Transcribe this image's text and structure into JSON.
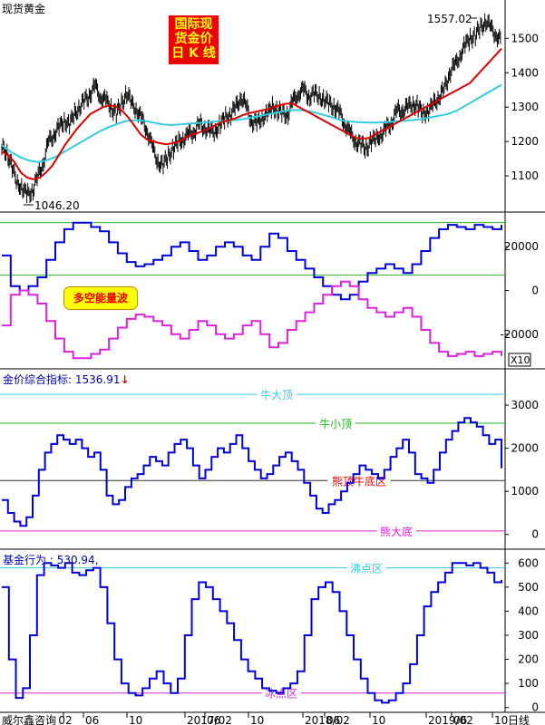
{
  "app": {
    "title": "现货黄金",
    "vendor": "威尔鑫咨询",
    "period_label": "日线",
    "badge_lines": [
      "国际现",
      "货金价",
      "日 K 线"
    ]
  },
  "colors": {
    "price": "#000000",
    "ma_fast": "#dd0000",
    "ma_slow": "#33ccdd",
    "bull": "#0000dd",
    "bear": "#dd22dd",
    "ref_green": "#22bb22",
    "ref_cyan": "#33ccdd",
    "ref_magenta": "#dd22dd",
    "ref_black": "#333333",
    "badge_bg": "#ee0000",
    "badge_text": "#ffff00",
    "label_red": "#ee0000"
  },
  "xaxis": {
    "labels": [
      "02",
      "06",
      "10",
      "2017/02",
      "06",
      "10",
      "2018/02",
      "06",
      "10",
      "2019/02",
      "06",
      "10"
    ]
  },
  "chart_data": [
    {
      "type": "line",
      "title": "现货黄金",
      "ylim": [
        1000,
        1580
      ],
      "yticks": [
        1100,
        1200,
        1300,
        1400,
        1500
      ],
      "annotations": {
        "high": "1557.02",
        "low": "1046.20"
      },
      "series": [
        {
          "name": "price",
          "values": [
            1180,
            1170,
            1120,
            1080,
            1060,
            1046,
            1060,
            1100,
            1140,
            1200,
            1220,
            1240,
            1260,
            1250,
            1280,
            1300,
            1320,
            1340,
            1360,
            1330,
            1320,
            1300,
            1280,
            1310,
            1340,
            1310,
            1290,
            1260,
            1230,
            1180,
            1140,
            1130,
            1160,
            1180,
            1200,
            1210,
            1220,
            1230,
            1250,
            1240,
            1230,
            1230,
            1250,
            1270,
            1280,
            1300,
            1330,
            1300,
            1260,
            1250,
            1270,
            1280,
            1300,
            1290,
            1280,
            1280,
            1320,
            1340,
            1350,
            1330,
            1340,
            1330,
            1320,
            1310,
            1300,
            1280,
            1250,
            1220,
            1200,
            1190,
            1180,
            1200,
            1210,
            1220,
            1240,
            1260,
            1290,
            1290,
            1300,
            1310,
            1300,
            1280,
            1290,
            1310,
            1330,
            1350,
            1400,
            1420,
            1450,
            1480,
            1500,
            1510,
            1530,
            1550,
            1530,
            1510,
            1490
          ]
        },
        {
          "name": "ma_fast",
          "values": [
            1170,
            1160,
            1140,
            1110,
            1095,
            1090,
            1095,
            1110,
            1130,
            1160,
            1190,
            1215,
            1240,
            1260,
            1280,
            1290,
            1300,
            1305,
            1302,
            1290,
            1270,
            1245,
            1220,
            1205,
            1200,
            1195,
            1192,
            1195,
            1200,
            1210,
            1220,
            1225,
            1232,
            1240,
            1250,
            1258,
            1262,
            1268,
            1276,
            1282,
            1286,
            1290,
            1294,
            1300,
            1306,
            1310,
            1310,
            1300,
            1290,
            1280,
            1270,
            1260,
            1250,
            1240,
            1230,
            1220,
            1210,
            1208,
            1210,
            1220,
            1230,
            1240,
            1250,
            1260,
            1270,
            1280,
            1290,
            1300,
            1310,
            1320,
            1330,
            1340,
            1350,
            1360,
            1370,
            1390,
            1410,
            1430,
            1450,
            1470
          ]
        },
        {
          "name": "ma_slow",
          "values": [
            1190,
            1170,
            1155,
            1145,
            1140,
            1145,
            1155,
            1170,
            1185,
            1200,
            1215,
            1230,
            1242,
            1252,
            1260,
            1262,
            1260,
            1255,
            1250,
            1248,
            1250,
            1252,
            1254,
            1256,
            1258,
            1260,
            1262,
            1265,
            1270,
            1275,
            1280,
            1285,
            1290,
            1292,
            1290,
            1285,
            1278,
            1270,
            1262,
            1258,
            1256,
            1255,
            1255,
            1256,
            1258,
            1260,
            1262,
            1265,
            1270,
            1275,
            1280,
            1290,
            1305,
            1320,
            1335,
            1350,
            1365
          ]
        },
        {
          "name": "bull",
          "values": [
            8,
            3,
            -5,
            -8,
            -4,
            5,
            15,
            22,
            26,
            30,
            28,
            28,
            24,
            20,
            17,
            16,
            17,
            17,
            18,
            19,
            18,
            16,
            15,
            20,
            21,
            22,
            20,
            18,
            17,
            22,
            24,
            20,
            16,
            13,
            10,
            7,
            4,
            1,
            -1,
            -3,
            -2,
            0,
            6,
            10,
            10,
            8,
            9,
            12,
            20,
            25,
            27,
            28,
            28,
            30,
            27,
            28
          ]
        },
        {
          "name": "bear",
          "values": [
            -8,
            -3,
            5,
            8,
            4,
            -5,
            -15,
            -22,
            -26,
            -30,
            -28,
            -28,
            -24,
            -20,
            -17,
            -16,
            -17,
            -17,
            -18,
            -19,
            -18,
            -16,
            -15,
            -20,
            -21,
            -22,
            -20,
            -18,
            -17,
            -22,
            -24,
            -20,
            -16,
            -13,
            -10,
            -7,
            -4,
            -1,
            1,
            3,
            2,
            0,
            -6,
            -10,
            -10,
            -8,
            -9,
            -12,
            -20,
            -25,
            -27,
            -28,
            -28,
            -30,
            -27,
            -28
          ]
        }
      ]
    },
    {
      "type": "line",
      "title": "多空能量波",
      "ylim": [
        -35000,
        35000
      ],
      "yticks": [
        20000,
        0,
        -20000
      ],
      "ytick_labels": [
        "20000",
        "0",
        "-20000"
      ],
      "multiplier_label": "X10",
      "ref_lines": [
        {
          "value": 31000
        },
        {
          "value": 7000
        }
      ],
      "series": [
        {
          "name": "bull",
          "values": [
            16000,
            2000,
            0,
            2000,
            6000,
            14000,
            22000,
            28000,
            31000,
            31000,
            29000,
            27000,
            22000,
            17000,
            13000,
            11000,
            12000,
            14000,
            16000,
            20000,
            22000,
            18000,
            14000,
            16000,
            20000,
            22000,
            20000,
            16000,
            14000,
            20000,
            26000,
            24000,
            18000,
            14000,
            10000,
            6000,
            2000,
            -2000,
            -4000,
            -2000,
            4000,
            8000,
            10000,
            12000,
            10000,
            8000,
            12000,
            18000,
            24000,
            28000,
            30000,
            29000,
            28000,
            30000,
            29000,
            28000,
            30000
          ]
        },
        {
          "name": "bear",
          "values": [
            -16000,
            -2000,
            0,
            -2000,
            -6000,
            -14000,
            -22000,
            -28000,
            -31000,
            -31000,
            -29000,
            -27000,
            -22000,
            -17000,
            -13000,
            -11000,
            -12000,
            -14000,
            -16000,
            -20000,
            -22000,
            -18000,
            -14000,
            -16000,
            -20000,
            -22000,
            -20000,
            -16000,
            -14000,
            -20000,
            -26000,
            -24000,
            -18000,
            -14000,
            -10000,
            -6000,
            -2000,
            2000,
            4000,
            2000,
            -4000,
            -8000,
            -10000,
            -12000,
            -10000,
            -8000,
            -12000,
            -18000,
            -24000,
            -28000,
            -30000,
            -29000,
            -28000,
            -30000,
            -29000,
            -28000,
            -30000
          ]
        }
      ]
    },
    {
      "type": "line",
      "title": "金价综合指标",
      "value_label": "1536.91",
      "ylim": [
        -300,
        3800
      ],
      "yticks": [
        3000,
        2000,
        1000,
        0
      ],
      "ref_lines": [
        {
          "label": "牛大顶",
          "value": 3250
        },
        {
          "label": "牛小顶",
          "value": 2580
        },
        {
          "label": "熊顶牛底区",
          "value": 1250
        },
        {
          "label": "熊大底",
          "value": 80
        }
      ],
      "series": [
        {
          "name": "金价综合指标",
          "values": [
            800,
            500,
            300,
            200,
            400,
            900,
            1500,
            1900,
            2100,
            2300,
            2200,
            2100,
            2200,
            2000,
            1800,
            1900,
            1500,
            900,
            700,
            800,
            1100,
            1300,
            1400,
            1600,
            1800,
            1700,
            1600,
            1900,
            2100,
            2200,
            2000,
            1600,
            1300,
            1500,
            1800,
            2000,
            1900,
            2100,
            2300,
            2000,
            1700,
            1500,
            1300,
            1400,
            1600,
            1800,
            1900,
            1700,
            1500,
            1200,
            900,
            600,
            500,
            700,
            800,
            1000,
            1200,
            1400,
            1600,
            1500,
            1400,
            1300,
            1500,
            1800,
            2000,
            2200,
            1900,
            1400,
            1300,
            1200,
            1500,
            1900,
            2200,
            2400,
            2600,
            2700,
            2600,
            2500,
            2300,
            2100,
            2200,
            1537
          ]
        }
      ]
    },
    {
      "type": "line",
      "title": "基金行为",
      "value_label": "530.94",
      "ylim": [
        -20,
        650
      ],
      "yticks": [
        600,
        500,
        400,
        300,
        200,
        100,
        0
      ],
      "ref_lines": [
        {
          "label": "沸点区",
          "value": 580
        },
        {
          "label": "冰点区",
          "value": 60
        }
      ],
      "series": [
        {
          "name": "基金行为",
          "values": [
            500,
            200,
            40,
            80,
            300,
            550,
            600,
            590,
            580,
            600,
            560,
            550,
            570,
            580,
            500,
            350,
            200,
            100,
            60,
            50,
            80,
            120,
            150,
            100,
            60,
            120,
            300,
            450,
            520,
            500,
            450,
            400,
            350,
            280,
            200,
            150,
            120,
            80,
            70,
            60,
            80,
            100,
            150,
            300,
            450,
            500,
            520,
            480,
            400,
            300,
            200,
            120,
            60,
            30,
            20,
            30,
            60,
            100,
            180,
            300,
            420,
            480,
            520,
            560,
            600,
            600,
            590,
            600,
            580,
            560,
            520,
            530
          ]
        }
      ]
    }
  ]
}
